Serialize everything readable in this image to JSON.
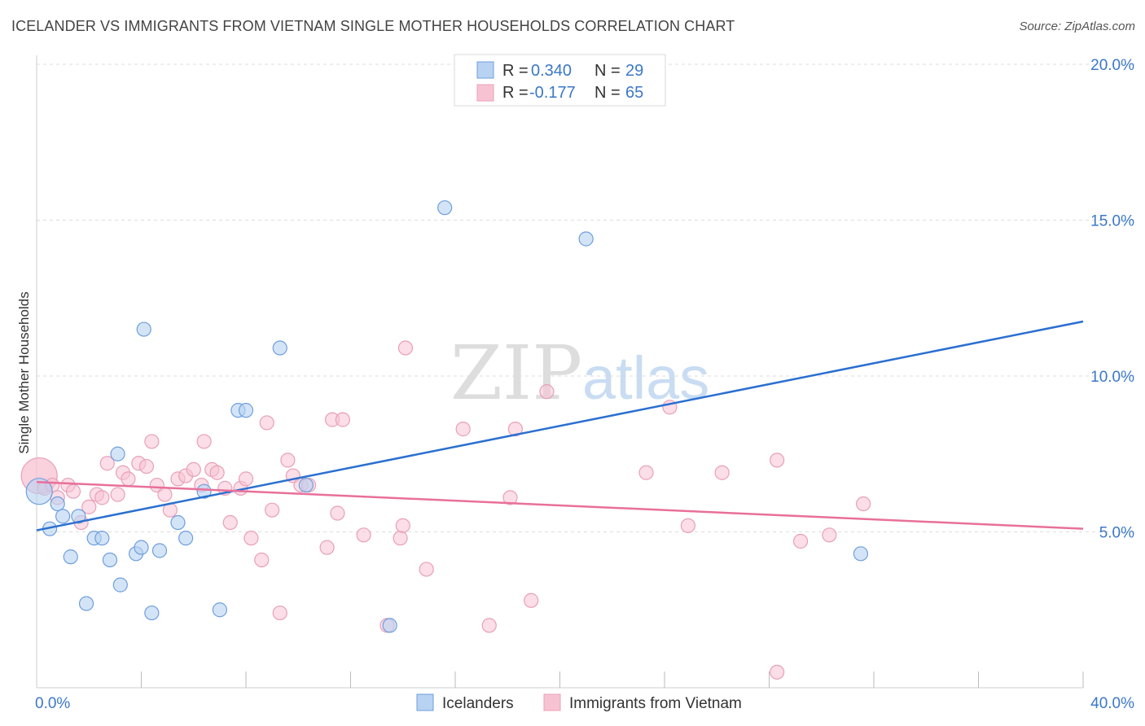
{
  "title": "ICELANDER VS IMMIGRANTS FROM VIETNAM SINGLE MOTHER HOUSEHOLDS CORRELATION CHART",
  "source": "Source: ZipAtlas.com",
  "watermark": {
    "zip": "ZIP",
    "atlas": "atlas"
  },
  "colors": {
    "blue": "#3b78c8",
    "blue_fill": "#b8d2f2",
    "blue_line": "#2a6fd0",
    "pink_fill": "#f7c3d3",
    "pink_line": "#e8709a",
    "pink_stroke": "#e8a0b8",
    "grid": "#dddddd"
  },
  "legend": {
    "rows": [
      {
        "r_label": "R =",
        "r_value": "0.340",
        "n_label": "N =",
        "n_value": "29"
      },
      {
        "r_label": "R =",
        "r_value": "-0.177",
        "n_label": "N =",
        "n_value": "65"
      }
    ]
  },
  "chart_data": {
    "type": "scatter",
    "title": "ICELANDER VS IMMIGRANTS FROM VIETNAM SINGLE MOTHER HOUSEHOLDS CORRELATION CHART",
    "xlabel": "",
    "ylabel": "Single Mother Households",
    "xlim": [
      0,
      40
    ],
    "ylim": [
      0,
      20.5
    ],
    "x_tick_labels": [
      {
        "value": 0,
        "label": "0.0%"
      },
      {
        "value": 40,
        "label": "40.0%"
      }
    ],
    "y_tick_labels": [
      {
        "value": 5,
        "label": "5.0%"
      },
      {
        "value": 10,
        "label": "10.0%"
      },
      {
        "value": 15,
        "label": "15.0%"
      },
      {
        "value": 20,
        "label": "20.0%"
      }
    ],
    "x_minor_ticks": [
      4,
      8,
      12,
      16,
      20,
      24,
      28,
      32,
      36,
      40
    ],
    "grid": true,
    "legend_position": "top-center",
    "series": [
      {
        "name": "Icelanders",
        "color": "#b8d2f2",
        "r": 0.34,
        "n": 29,
        "trend": [
          [
            0,
            5.05
          ],
          [
            40,
            11.75
          ]
        ],
        "points": [
          [
            0.1,
            6.3
          ],
          [
            0.5,
            5.1
          ],
          [
            0.8,
            5.9
          ],
          [
            1.0,
            5.5
          ],
          [
            1.3,
            4.2
          ],
          [
            1.6,
            5.5
          ],
          [
            1.9,
            2.7
          ],
          [
            2.2,
            4.8
          ],
          [
            2.5,
            4.8
          ],
          [
            2.8,
            4.1
          ],
          [
            3.2,
            3.3
          ],
          [
            3.1,
            7.5
          ],
          [
            3.8,
            4.3
          ],
          [
            4.0,
            4.5
          ],
          [
            4.1,
            11.5
          ],
          [
            4.4,
            2.4
          ],
          [
            4.7,
            4.4
          ],
          [
            5.4,
            5.3
          ],
          [
            5.7,
            4.8
          ],
          [
            6.4,
            6.3
          ],
          [
            7.0,
            2.5
          ],
          [
            7.7,
            8.9
          ],
          [
            8.0,
            8.9
          ],
          [
            9.3,
            10.9
          ],
          [
            10.3,
            6.5
          ],
          [
            13.5,
            2.0
          ],
          [
            15.6,
            15.4
          ],
          [
            21.0,
            14.4
          ],
          [
            31.5,
            4.3
          ]
        ]
      },
      {
        "name": "Immigrants from Vietnam",
        "color": "#f7c3d3",
        "r": -0.177,
        "n": 65,
        "trend": [
          [
            0,
            6.6
          ],
          [
            40,
            5.1
          ]
        ],
        "points": [
          [
            0.1,
            6.8
          ],
          [
            0.3,
            6.4
          ],
          [
            0.6,
            6.5
          ],
          [
            0.8,
            6.1
          ],
          [
            1.2,
            6.5
          ],
          [
            1.4,
            6.3
          ],
          [
            1.7,
            5.3
          ],
          [
            2.0,
            5.8
          ],
          [
            2.3,
            6.2
          ],
          [
            2.5,
            6.1
          ],
          [
            2.7,
            7.2
          ],
          [
            3.1,
            6.2
          ],
          [
            3.3,
            6.9
          ],
          [
            3.5,
            6.7
          ],
          [
            3.9,
            7.2
          ],
          [
            4.2,
            7.1
          ],
          [
            4.4,
            7.9
          ],
          [
            4.6,
            6.5
          ],
          [
            4.9,
            6.2
          ],
          [
            5.1,
            5.7
          ],
          [
            5.4,
            6.7
          ],
          [
            5.7,
            6.8
          ],
          [
            6.0,
            7.0
          ],
          [
            6.3,
            6.5
          ],
          [
            6.4,
            7.9
          ],
          [
            6.7,
            7.0
          ],
          [
            6.9,
            6.9
          ],
          [
            7.2,
            6.4
          ],
          [
            7.4,
            5.3
          ],
          [
            7.8,
            6.4
          ],
          [
            8.0,
            6.7
          ],
          [
            8.2,
            4.8
          ],
          [
            8.6,
            4.1
          ],
          [
            8.8,
            8.5
          ],
          [
            9.0,
            5.7
          ],
          [
            9.3,
            2.4
          ],
          [
            9.6,
            7.3
          ],
          [
            9.8,
            6.8
          ],
          [
            10.1,
            6.5
          ],
          [
            10.4,
            6.5
          ],
          [
            11.1,
            4.5
          ],
          [
            11.3,
            8.6
          ],
          [
            11.5,
            5.6
          ],
          [
            11.7,
            8.6
          ],
          [
            12.5,
            4.9
          ],
          [
            13.4,
            2.0
          ],
          [
            13.9,
            4.8
          ],
          [
            14.0,
            5.2
          ],
          [
            14.1,
            10.9
          ],
          [
            14.9,
            3.8
          ],
          [
            16.3,
            8.3
          ],
          [
            17.3,
            2.0
          ],
          [
            18.1,
            6.1
          ],
          [
            18.3,
            8.3
          ],
          [
            18.9,
            2.8
          ],
          [
            19.5,
            9.5
          ],
          [
            23.3,
            6.9
          ],
          [
            24.2,
            9.0
          ],
          [
            24.9,
            5.2
          ],
          [
            26.2,
            6.9
          ],
          [
            28.3,
            0.5
          ],
          [
            28.3,
            7.3
          ],
          [
            29.2,
            4.7
          ],
          [
            30.3,
            4.9
          ],
          [
            31.6,
            5.9
          ]
        ]
      }
    ]
  }
}
